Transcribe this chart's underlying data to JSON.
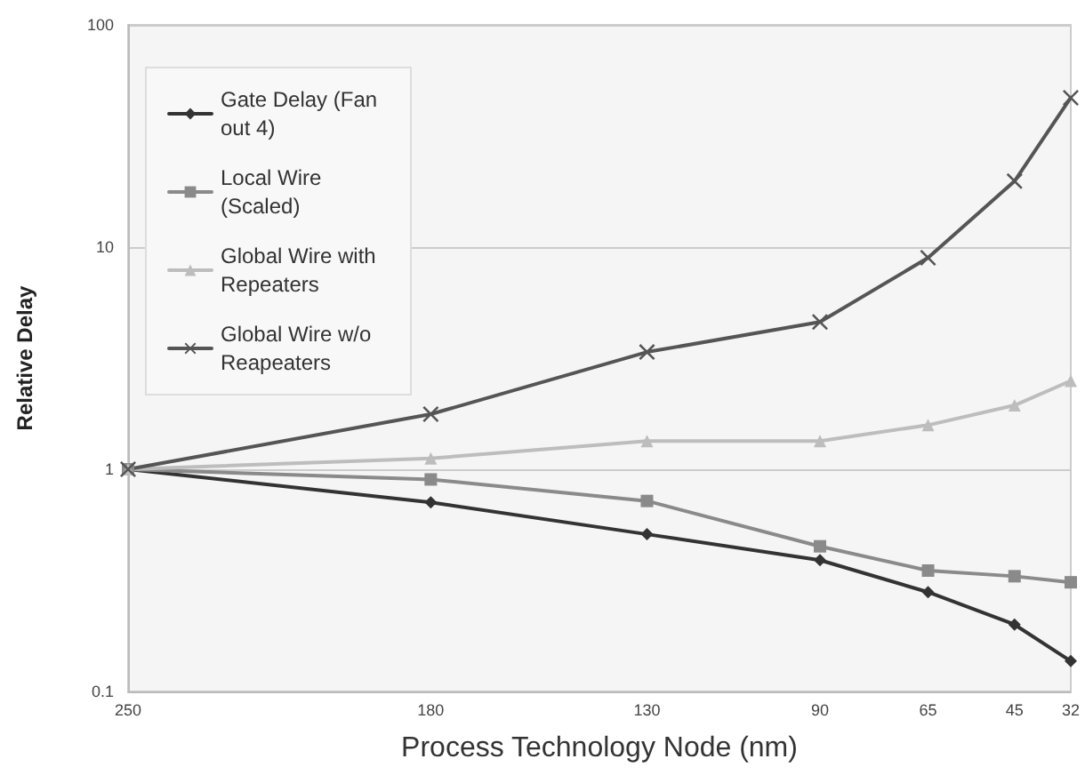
{
  "chart_data": {
    "type": "line",
    "xlabel": "Process Technology Node (nm)",
    "ylabel": "Relative Delay",
    "x": [
      250,
      180,
      130,
      90,
      65,
      45,
      32
    ],
    "xlim": [
      250,
      32
    ],
    "xticks": [
      250,
      180,
      130,
      90,
      65,
      45,
      32
    ],
    "ylim": [
      0.1,
      100
    ],
    "yticks": [
      0.1,
      1,
      10,
      100
    ],
    "log": "y",
    "grid": "y",
    "legend": "top left",
    "series": [
      {
        "name": "Gate Delay (Fan out 4)",
        "color": "#333333",
        "marker": "diamond",
        "values": [
          1,
          0.71,
          0.51,
          0.39,
          0.28,
          0.2,
          0.137
        ]
      },
      {
        "name": "Local Wire (Scaled)",
        "color": "#8a8a8a",
        "marker": "square",
        "values": [
          1,
          0.9,
          0.72,
          0.45,
          0.35,
          0.33,
          0.31
        ]
      },
      {
        "name": "Global Wire with Repeaters",
        "color": "#bdbdbd",
        "marker": "triangle",
        "values": [
          1,
          1.12,
          1.34,
          1.34,
          1.58,
          1.94,
          2.5
        ]
      },
      {
        "name": "Global Wire w/o Reapeaters",
        "color": "#555555",
        "marker": "cross",
        "values": [
          1,
          1.77,
          3.37,
          4.6,
          8.95,
          19.8,
          47
        ]
      }
    ]
  }
}
